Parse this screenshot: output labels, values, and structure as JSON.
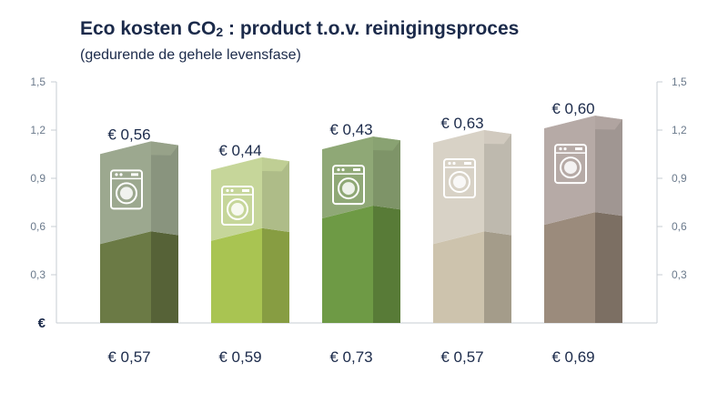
{
  "chart_data": {
    "type": "bar",
    "title_main": "Eco kosten CO",
    "title_sub": "2",
    "title_rest": " : product t.o.v. reinigingsproces",
    "subtitle": "(gedurende de gehele levensfase)",
    "y_unit_symbol": "€",
    "ylim": [
      0,
      1.5
    ],
    "yticks": [
      "1,5",
      "1,2",
      "0,9",
      "0,6",
      "0,3"
    ],
    "ytick_values": [
      1.5,
      1.2,
      0.9,
      0.6,
      0.3
    ],
    "series": [
      {
        "values": [
          0.57,
          0.59,
          0.73,
          0.57,
          0.69
        ],
        "labels": [
          "€ 0,57",
          "€ 0,59",
          "€ 0,73",
          "€ 0,57",
          "€ 0,69"
        ]
      },
      {
        "values": [
          0.56,
          0.44,
          0.43,
          0.63,
          0.6
        ],
        "labels": [
          "€ 0,56",
          "€ 0,44",
          "€ 0,43",
          "€ 0,63",
          "€ 0,60"
        ]
      }
    ],
    "icon": "washing-machine-icon",
    "colors": {
      "bottom": [
        "#6b7a45",
        "#a9c452",
        "#6e9a45",
        "#cdc3ad",
        "#9b8b7c"
      ],
      "top": [
        "#9ca88f",
        "#c6d69a",
        "#8fa876",
        "#d8d2c6",
        "#b6aaa6"
      ]
    }
  }
}
